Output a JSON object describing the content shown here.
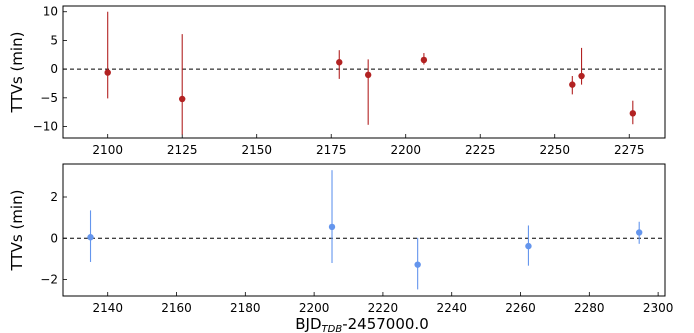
{
  "chart_data": [
    {
      "type": "scatter",
      "ylabel": "TTVs (min)",
      "xlim": [
        2085,
        2287
      ],
      "ylim": [
        -12,
        11
      ],
      "xticks": [
        2100,
        2125,
        2150,
        2175,
        2200,
        2225,
        2250,
        2275
      ],
      "yticks": [
        10,
        5,
        0,
        -5,
        -10
      ],
      "color": "#b22222",
      "zero_line": "dashed",
      "series": [
        {
          "values": [
            {
              "x": 2100.0,
              "y": -0.6,
              "yerr_low": 4.5,
              "yerr_high": 10.6
            },
            {
              "x": 2125.0,
              "y": -5.2,
              "yerr_low": 6.2,
              "yerr_high": 11.3
            },
            {
              "x": 2177.7,
              "y": 1.2,
              "yerr_low": 2.9,
              "yerr_high": 2.1
            },
            {
              "x": 2187.4,
              "y": -1.0,
              "yerr_low": 8.7,
              "yerr_high": 2.7
            },
            {
              "x": 2206.1,
              "y": 1.6,
              "yerr_low": 0.8,
              "yerr_high": 1.2
            },
            {
              "x": 2255.9,
              "y": -2.7,
              "yerr_low": 1.7,
              "yerr_high": 1.5
            },
            {
              "x": 2259.0,
              "y": -1.2,
              "yerr_low": 1.5,
              "yerr_high": 4.9
            },
            {
              "x": 2276.2,
              "y": -7.7,
              "yerr_low": 1.9,
              "yerr_high": 2.2
            }
          ]
        }
      ]
    },
    {
      "type": "scatter",
      "xlabel": "BJD",
      "xlabel_subscript": "TDB",
      "xlabel_suffix": "-2457000.0",
      "ylabel": "TTVs (min)",
      "xlim": [
        2127,
        2302
      ],
      "ylim": [
        -2.8,
        3.6
      ],
      "xticks": [
        2140,
        2160,
        2180,
        2200,
        2220,
        2240,
        2260,
        2280,
        2300
      ],
      "yticks": [
        2,
        0,
        -2
      ],
      "color": "#6495ed",
      "zero_line": "dashed",
      "series": [
        {
          "values": [
            {
              "x": 2135.0,
              "y": 0.05,
              "yerr_low": 1.2,
              "yerr_high": 1.3
            },
            {
              "x": 2205.2,
              "y": 0.55,
              "yerr_low": 1.75,
              "yerr_high": 2.75
            },
            {
              "x": 2230.1,
              "y": -1.28,
              "yerr_low": 1.2,
              "yerr_high": 1.3
            },
            {
              "x": 2262.3,
              "y": -0.38,
              "yerr_low": 0.95,
              "yerr_high": 1.0
            },
            {
              "x": 2294.5,
              "y": 0.28,
              "yerr_low": 0.55,
              "yerr_high": 0.52
            }
          ]
        }
      ]
    }
  ]
}
